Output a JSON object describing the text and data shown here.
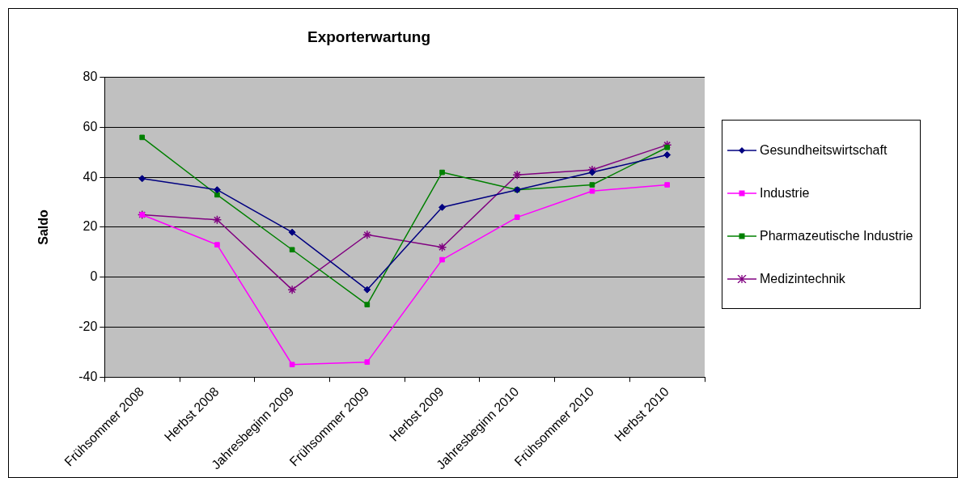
{
  "chart_data": {
    "type": "line",
    "title": "Exporterwartung",
    "ylabel": "Saldo",
    "categories": [
      "Frühsommer 2008",
      "Herbst 2008",
      "Jahresbeginn 2009",
      "Frühsommer 2009",
      "Herbst 2009",
      "Jahresbeginn 2010",
      "Frühsommer 2010",
      "Herbst 2010"
    ],
    "series": [
      {
        "name": "Gesundheitswirtschaft",
        "color": "#000080",
        "marker": "diamond",
        "values": [
          39.5,
          35,
          18,
          -5,
          28,
          35,
          42,
          49
        ]
      },
      {
        "name": "Industrie",
        "color": "#ff00ff",
        "marker": "square",
        "values": [
          25,
          13,
          -35,
          -34,
          7,
          24,
          34.5,
          37
        ]
      },
      {
        "name": "Pharmazeutische Industrie",
        "color": "#008000",
        "marker": "square",
        "values": [
          56,
          33,
          11,
          -11,
          42,
          35,
          37,
          52
        ]
      },
      {
        "name": "Medizintechnik",
        "color": "#800080",
        "marker": "cross",
        "values": [
          25,
          23,
          -5,
          17,
          12,
          41,
          43,
          53
        ]
      }
    ],
    "ylim": [
      -40,
      80
    ],
    "yticks": [
      -40,
      -20,
      0,
      20,
      40,
      60,
      80
    ],
    "grid": "y",
    "legend": "right"
  }
}
